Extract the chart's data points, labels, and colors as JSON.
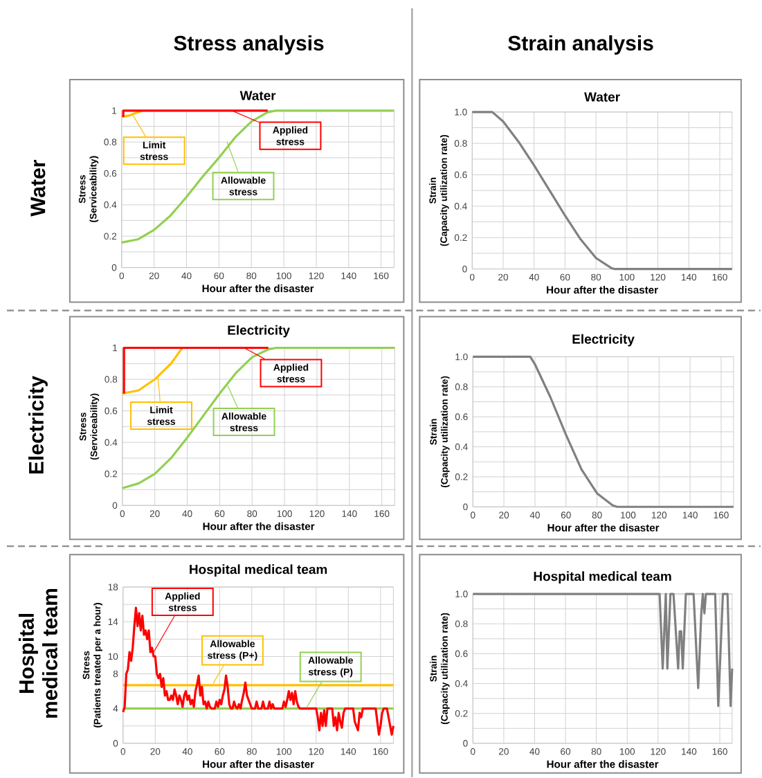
{
  "chart_data": [
    {
      "type": "line",
      "title": "Water",
      "xlabel": "Hour after the disaster",
      "ylabel": "Stress (Serviceability)",
      "xlim": [
        0,
        168
      ],
      "ylim": [
        0,
        1
      ],
      "xticks": [
        0,
        20,
        40,
        60,
        80,
        100,
        120,
        140,
        160
      ],
      "yticks": [
        0,
        {
          "value": 0.1,
          "label": null
        },
        0.2,
        {
          "value": 0.3,
          "label": null
        },
        0.4,
        {
          "value": 0.5,
          "label": null
        },
        0.6,
        {
          "value": 0.7,
          "label": null
        },
        0.8,
        {
          "value": 0.9,
          "label": null
        },
        1
      ],
      "grid": true,
      "annotations": [
        "Stress analysis",
        "Water"
      ],
      "series": [
        {
          "name": "Allowable stress",
          "color": "#92d050",
          "x": [
            0,
            10,
            20,
            30,
            40,
            50,
            60,
            70,
            80,
            90,
            95,
            168
          ],
          "values": [
            0.16,
            0.18,
            0.24,
            0.33,
            0.45,
            0.58,
            0.7,
            0.83,
            0.93,
            0.99,
            1,
            1
          ]
        },
        {
          "name": "Limit stress",
          "color": "#ffc000",
          "x": [
            0,
            5,
            10,
            13
          ],
          "values": [
            0.96,
            0.97,
            0.99,
            1
          ]
        },
        {
          "name": "Applied stress",
          "color": "#ff0000",
          "x": [
            1,
            1,
            90
          ],
          "values": [
            0.96,
            1,
            1
          ]
        }
      ]
    },
    {
      "type": "line",
      "title": "Water",
      "xlabel": "Hour after the disaster",
      "ylabel": "Strain (Capacity utilization rate)",
      "xlim": [
        0,
        168
      ],
      "ylim": [
        0,
        1
      ],
      "xticks": [
        0,
        20,
        40,
        60,
        80,
        100,
        120,
        140,
        160
      ],
      "yticks": [
        0,
        {
          "value": 0.1,
          "label": null
        },
        0.2,
        {
          "value": 0.3,
          "label": null
        },
        0.4,
        {
          "value": 0.5,
          "label": null
        },
        0.6,
        {
          "value": 0.7,
          "label": null
        },
        0.8,
        {
          "value": 0.9,
          "label": null
        },
        {
          "value": 1,
          "label": "1.0"
        }
      ],
      "grid": true,
      "annotations": [
        "Strain analysis"
      ],
      "series": [
        {
          "color": "#808080",
          "x": [
            0,
            13,
            20,
            30,
            40,
            50,
            60,
            70,
            80,
            90,
            92,
            168
          ],
          "values": [
            1,
            1,
            0.94,
            0.81,
            0.66,
            0.5,
            0.34,
            0.19,
            0.07,
            0.005,
            0,
            0
          ]
        }
      ]
    },
    {
      "type": "line",
      "title": "Electricity",
      "xlabel": "Hour after the disaster",
      "ylabel": "Stress (Serviceability)",
      "xlim": [
        0,
        168
      ],
      "ylim": [
        0,
        1
      ],
      "xticks": [
        0,
        20,
        40,
        60,
        80,
        100,
        120,
        140,
        160
      ],
      "yticks": [
        0,
        {
          "value": 0.1,
          "label": null
        },
        0.2,
        {
          "value": 0.3,
          "label": null
        },
        0.4,
        {
          "value": 0.5,
          "label": null
        },
        0.6,
        {
          "value": 0.7,
          "label": null
        },
        0.8,
        {
          "value": 0.9,
          "label": null
        },
        1
      ],
      "grid": true,
      "annotations": [
        "Electricity"
      ],
      "series": [
        {
          "name": "Allowable stress",
          "color": "#92d050",
          "x": [
            0,
            10,
            20,
            30,
            40,
            50,
            60,
            70,
            80,
            90,
            95,
            168
          ],
          "values": [
            0.11,
            0.14,
            0.2,
            0.3,
            0.43,
            0.57,
            0.71,
            0.84,
            0.94,
            0.99,
            1,
            1
          ]
        },
        {
          "name": "Limit stress",
          "color": "#ffc000",
          "x": [
            0,
            10,
            20,
            30,
            37
          ],
          "values": [
            0.71,
            0.73,
            0.8,
            0.9,
            1
          ]
        },
        {
          "name": "Applied stress",
          "color": "#ff0000",
          "x": [
            1,
            1,
            90
          ],
          "values": [
            0.71,
            1,
            1
          ]
        }
      ]
    },
    {
      "type": "line",
      "title": "Electricity",
      "xlabel": "Hour after the disaster",
      "ylabel": "Strain (Capacity utilization rate)",
      "xlim": [
        0,
        168
      ],
      "ylim": [
        0,
        1
      ],
      "xticks": [
        0,
        20,
        40,
        60,
        80,
        100,
        120,
        140,
        160
      ],
      "yticks": [
        0,
        {
          "value": 0.1,
          "label": null
        },
        0.2,
        {
          "value": 0.3,
          "label": null
        },
        0.4,
        {
          "value": 0.5,
          "label": null
        },
        0.6,
        {
          "value": 0.7,
          "label": null
        },
        0.8,
        {
          "value": 0.9,
          "label": null
        },
        {
          "value": 1,
          "label": "1.0"
        }
      ],
      "grid": true,
      "series": [
        {
          "color": "#808080",
          "x": [
            0,
            37,
            40,
            50,
            60,
            70,
            80,
            90,
            93,
            168
          ],
          "values": [
            1,
            1,
            0.95,
            0.73,
            0.48,
            0.25,
            0.09,
            0.01,
            0,
            0
          ]
        }
      ]
    },
    {
      "type": "line",
      "title": "Hospital medical team",
      "xlabel": "Hour after the disaster",
      "ylabel": "Stress (Patients treated per a hour)",
      "xlim": [
        0,
        168
      ],
      "ylim": [
        0,
        18
      ],
      "xticks": [
        0,
        20,
        40,
        60,
        80,
        100,
        120,
        140,
        160
      ],
      "yticks": [
        0,
        {
          "value": 2,
          "label": null
        },
        4,
        {
          "value": 6,
          "label": null
        },
        8,
        10,
        {
          "value": 12,
          "label": null
        },
        14,
        {
          "value": 16,
          "label": null
        },
        18
      ],
      "grid": true,
      "annotations": [
        "Hospital medical team"
      ],
      "ref_lines": [
        {
          "axis": "y",
          "value": 6.7,
          "label": "Allowable stress (P+)",
          "color": "#ffc000"
        },
        {
          "axis": "y",
          "value": 4,
          "label": "Allowable stress (P)",
          "color": "#92d050"
        }
      ],
      "series": [
        {
          "name": "Applied stress",
          "color": "#ff0000",
          "x": [
            0,
            1,
            2,
            3,
            4,
            5,
            6,
            7,
            8,
            9,
            10,
            11,
            12,
            13,
            14,
            15,
            16,
            17,
            18,
            19,
            20,
            21,
            22,
            23,
            24,
            25,
            26,
            27,
            28,
            29,
            30,
            31,
            32,
            33,
            34,
            35,
            36,
            37,
            38,
            39,
            40,
            41,
            42,
            43,
            44,
            45,
            46,
            47,
            48,
            49,
            50,
            51,
            52,
            53,
            54,
            55,
            57,
            58,
            59,
            60,
            61,
            62,
            63,
            64,
            65,
            66,
            67,
            68,
            69,
            70,
            71,
            72,
            73,
            74,
            75,
            76,
            77,
            78,
            79,
            80,
            81,
            82,
            83,
            84,
            86,
            87,
            88,
            90,
            91,
            92,
            93,
            94,
            99,
            100,
            101,
            102,
            103,
            104,
            105,
            106,
            107,
            108,
            109,
            110,
            120,
            121,
            122,
            123,
            124,
            125,
            126,
            127,
            130,
            131,
            132,
            133,
            134,
            135,
            136,
            137,
            138,
            143,
            144,
            145,
            146,
            147,
            148,
            149,
            150,
            157,
            158,
            159,
            160,
            161,
            162,
            164,
            165,
            166,
            167,
            168
          ],
          "values": [
            3.6,
            4.2,
            8,
            8.5,
            10.5,
            9.5,
            11,
            13.5,
            15.6,
            13.5,
            15,
            13,
            14.7,
            12.5,
            13,
            12,
            13,
            10.5,
            11,
            10,
            10,
            8,
            7.5,
            8,
            6.5,
            7.5,
            5.5,
            6,
            5,
            5,
            5.5,
            5,
            6.2,
            5.5,
            4.5,
            5.5,
            5,
            4.2,
            5.5,
            6,
            5,
            5.5,
            4.5,
            5,
            4.2,
            6,
            6.8,
            7.8,
            5.5,
            6.5,
            4.5,
            4.8,
            4,
            4.8,
            4.2,
            4,
            4,
            4.8,
            4.2,
            5,
            4.5,
            5.5,
            6.2,
            7.8,
            6.5,
            4.5,
            4,
            4,
            4.8,
            4.2,
            4,
            4.5,
            4,
            5,
            5.8,
            7,
            5.5,
            5,
            4.5,
            4,
            4,
            4,
            4.8,
            4,
            4,
            4.8,
            4,
            4,
            4.8,
            4,
            4.5,
            4,
            4,
            4.8,
            4.2,
            5,
            6,
            5,
            5.8,
            4.5,
            6,
            4.8,
            4.2,
            4,
            4,
            3,
            1.5,
            3.5,
            2,
            3.8,
            2,
            4,
            4,
            2,
            3,
            1.5,
            3.5,
            2.5,
            1.8,
            3.5,
            4,
            4,
            2.5,
            2,
            1.5,
            3.5,
            3,
            4,
            4,
            4,
            2.5,
            1,
            2,
            3.5,
            4,
            4,
            3,
            2,
            1,
            2
          ]
        }
      ]
    },
    {
      "type": "line",
      "title": "Hospital medical team",
      "xlabel": "Hour after the disaster",
      "ylabel": "Strain (Capacity utilization rate)",
      "xlim": [
        0,
        168
      ],
      "ylim": [
        0,
        1
      ],
      "xticks": [
        0,
        20,
        40,
        60,
        80,
        100,
        120,
        140,
        160
      ],
      "yticks": [
        0,
        {
          "value": 0.1,
          "label": null
        },
        0.2,
        {
          "value": 0.3,
          "label": null
        },
        0.4,
        {
          "value": 0.5,
          "label": null
        },
        0.6,
        {
          "value": 0.7,
          "label": null
        },
        0.8,
        {
          "value": 0.9,
          "label": null
        },
        {
          "value": 1,
          "label": "1.0"
        }
      ],
      "grid": true,
      "series": [
        {
          "color": "#808080",
          "x": [
            0,
            121,
            123,
            125,
            126,
            128,
            130,
            133,
            134,
            135,
            136,
            138,
            143,
            146,
            148,
            149,
            150,
            151,
            157,
            159,
            162,
            165,
            167,
            168
          ],
          "values": [
            1,
            1,
            0.5,
            1,
            0.5,
            1,
            1,
            0.5,
            0.75,
            0.75,
            0.5,
            1,
            1,
            0.37,
            0.87,
            1,
            0.87,
            1,
            1,
            0.25,
            1,
            1,
            0.25,
            0.5
          ]
        }
      ]
    }
  ]
}
